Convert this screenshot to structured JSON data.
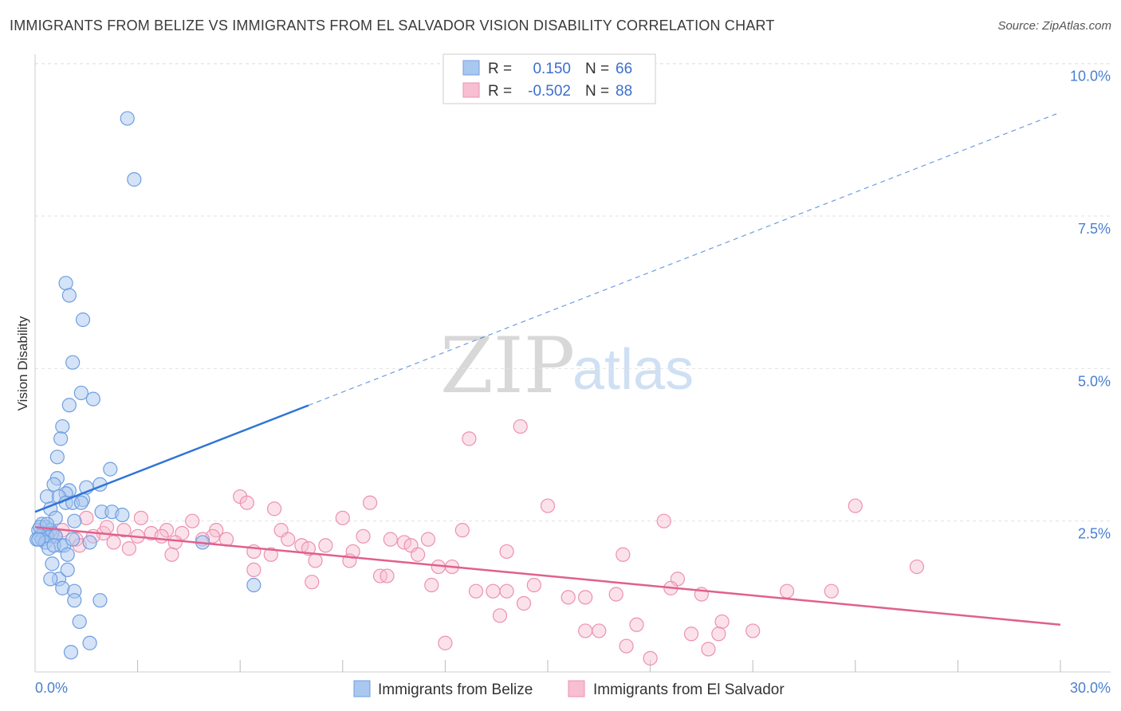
{
  "header": {
    "title": "IMMIGRANTS FROM BELIZE VS IMMIGRANTS FROM EL SALVADOR VISION DISABILITY CORRELATION CHART",
    "source": "Source: ZipAtlas.com"
  },
  "watermark": {
    "zip": "ZIP",
    "atlas": "atlas"
  },
  "legend": {
    "rows": [
      {
        "r_label": "R =",
        "r_value": "0.150",
        "n_label": "N =",
        "n_value": "66"
      },
      {
        "r_label": "R =",
        "r_value": "-0.502",
        "n_label": "N =",
        "n_value": "88"
      }
    ]
  },
  "chart_data": {
    "type": "scatter",
    "title": "IMMIGRANTS FROM BELIZE VS IMMIGRANTS FROM EL SALVADOR VISION DISABILITY CORRELATION CHART",
    "xlabel": "",
    "ylabel": "Vision Disability",
    "xlim": [
      0,
      30
    ],
    "ylim": [
      0,
      10.5
    ],
    "x_tick_labels": [
      "0.0%",
      "30.0%"
    ],
    "y_ticks": [
      2.5,
      5.0,
      7.5,
      10.0
    ],
    "y_tick_labels": [
      "2.5%",
      "5.0%",
      "7.5%",
      "10.0%"
    ],
    "grid": true,
    "colors": {
      "belize_fill": "#a9c8f0",
      "belize_stroke": "#6f9ee0",
      "belize_line": "#2f74d6",
      "salvador_fill": "#f7bfd1",
      "salvador_stroke": "#ee90b0",
      "salvador_line": "#e0608f"
    },
    "series": [
      {
        "name": "Immigrants from Belize",
        "r": 0.15,
        "n": 66,
        "trend": {
          "x0": 0.0,
          "y0": 2.65,
          "x_solid_end": 8.0,
          "x1": 30.0,
          "y1": 9.2
        },
        "points": [
          [
            2.7,
            9.1
          ],
          [
            2.9,
            8.1
          ],
          [
            0.9,
            6.4
          ],
          [
            1.0,
            6.2
          ],
          [
            1.4,
            5.8
          ],
          [
            1.1,
            5.1
          ],
          [
            1.35,
            4.6
          ],
          [
            1.0,
            4.4
          ],
          [
            1.7,
            4.5
          ],
          [
            0.8,
            4.05
          ],
          [
            0.75,
            3.85
          ],
          [
            0.65,
            3.55
          ],
          [
            2.2,
            3.35
          ],
          [
            0.65,
            3.2
          ],
          [
            0.55,
            3.1
          ],
          [
            1.5,
            3.05
          ],
          [
            1.9,
            3.1
          ],
          [
            1.0,
            3.0
          ],
          [
            0.9,
            2.95
          ],
          [
            0.35,
            2.9
          ],
          [
            0.7,
            2.9
          ],
          [
            1.4,
            2.85
          ],
          [
            0.9,
            2.8
          ],
          [
            1.1,
            2.8
          ],
          [
            1.35,
            2.8
          ],
          [
            0.45,
            2.7
          ],
          [
            1.95,
            2.65
          ],
          [
            2.25,
            2.65
          ],
          [
            2.55,
            2.6
          ],
          [
            0.6,
            2.55
          ],
          [
            1.15,
            2.5
          ],
          [
            0.2,
            2.45
          ],
          [
            0.3,
            2.4
          ],
          [
            0.1,
            2.35
          ],
          [
            0.45,
            2.35
          ],
          [
            0.25,
            2.3
          ],
          [
            0.5,
            2.3
          ],
          [
            0.15,
            2.25
          ],
          [
            0.35,
            2.25
          ],
          [
            0.6,
            2.25
          ],
          [
            0.05,
            2.2
          ],
          [
            0.2,
            2.2
          ],
          [
            0.3,
            2.15
          ],
          [
            0.75,
            2.1
          ],
          [
            0.4,
            2.05
          ],
          [
            1.6,
            2.15
          ],
          [
            0.55,
            2.1
          ],
          [
            0.85,
            2.1
          ],
          [
            0.95,
            1.95
          ],
          [
            0.5,
            1.8
          ],
          [
            0.7,
            1.55
          ],
          [
            0.95,
            1.7
          ],
          [
            0.45,
            1.55
          ],
          [
            0.8,
            1.4
          ],
          [
            1.15,
            1.35
          ],
          [
            1.15,
            1.2
          ],
          [
            1.9,
            1.2
          ],
          [
            1.3,
            0.85
          ],
          [
            1.6,
            0.5
          ],
          [
            1.05,
            0.35
          ],
          [
            4.9,
            2.15
          ],
          [
            6.4,
            1.45
          ],
          [
            0.15,
            2.4
          ],
          [
            0.1,
            2.2
          ],
          [
            0.35,
            2.45
          ],
          [
            1.1,
            2.2
          ]
        ]
      },
      {
        "name": "Immigrants from El Salvador",
        "r": -0.502,
        "n": 88,
        "trend": {
          "x0": 0.0,
          "y0": 2.4,
          "x1": 30.0,
          "y1": 0.8
        },
        "points": [
          [
            14.2,
            4.05
          ],
          [
            12.7,
            3.85
          ],
          [
            6.0,
            2.9
          ],
          [
            6.2,
            2.8
          ],
          [
            9.8,
            2.8
          ],
          [
            7.0,
            2.7
          ],
          [
            15.0,
            2.75
          ],
          [
            24.0,
            2.75
          ],
          [
            3.1,
            2.55
          ],
          [
            9.0,
            2.55
          ],
          [
            4.6,
            2.5
          ],
          [
            18.4,
            2.5
          ],
          [
            2.6,
            2.35
          ],
          [
            3.85,
            2.35
          ],
          [
            7.2,
            2.35
          ],
          [
            12.5,
            2.35
          ],
          [
            2.0,
            2.3
          ],
          [
            3.4,
            2.3
          ],
          [
            5.3,
            2.35
          ],
          [
            9.6,
            2.25
          ],
          [
            3.0,
            2.25
          ],
          [
            3.7,
            2.25
          ],
          [
            4.3,
            2.3
          ],
          [
            5.2,
            2.25
          ],
          [
            7.4,
            2.2
          ],
          [
            10.4,
            2.2
          ],
          [
            11.5,
            2.2
          ],
          [
            10.8,
            2.15
          ],
          [
            1.7,
            2.25
          ],
          [
            5.6,
            2.2
          ],
          [
            7.8,
            2.1
          ],
          [
            8.5,
            2.1
          ],
          [
            2.3,
            2.15
          ],
          [
            4.1,
            2.15
          ],
          [
            4.9,
            2.2
          ],
          [
            8.0,
            2.05
          ],
          [
            11.0,
            2.1
          ],
          [
            2.75,
            2.05
          ],
          [
            6.4,
            2.0
          ],
          [
            9.3,
            2.0
          ],
          [
            13.8,
            2.0
          ],
          [
            4.0,
            1.95
          ],
          [
            6.9,
            1.95
          ],
          [
            11.2,
            1.95
          ],
          [
            8.2,
            1.85
          ],
          [
            9.2,
            1.85
          ],
          [
            11.8,
            1.75
          ],
          [
            12.2,
            1.75
          ],
          [
            17.2,
            1.95
          ],
          [
            25.8,
            1.75
          ],
          [
            6.4,
            1.7
          ],
          [
            10.1,
            1.6
          ],
          [
            10.3,
            1.6
          ],
          [
            8.1,
            1.5
          ],
          [
            11.6,
            1.45
          ],
          [
            14.6,
            1.45
          ],
          [
            18.8,
            1.55
          ],
          [
            12.9,
            1.35
          ],
          [
            13.4,
            1.35
          ],
          [
            13.8,
            1.35
          ],
          [
            16.1,
            1.25
          ],
          [
            17.0,
            1.3
          ],
          [
            19.5,
            1.3
          ],
          [
            22.0,
            1.35
          ],
          [
            15.6,
            1.25
          ],
          [
            23.3,
            1.35
          ],
          [
            18.6,
            1.4
          ],
          [
            13.6,
            0.95
          ],
          [
            14.3,
            1.15
          ],
          [
            16.1,
            0.7
          ],
          [
            16.5,
            0.7
          ],
          [
            17.6,
            0.8
          ],
          [
            19.2,
            0.65
          ],
          [
            20.1,
            0.85
          ],
          [
            20.0,
            0.65
          ],
          [
            21.0,
            0.7
          ],
          [
            12.0,
            0.5
          ],
          [
            17.3,
            0.45
          ],
          [
            19.7,
            0.4
          ],
          [
            18.0,
            0.25
          ],
          [
            0.5,
            2.3
          ],
          [
            0.8,
            2.35
          ],
          [
            1.2,
            2.2
          ],
          [
            1.5,
            2.55
          ],
          [
            0.3,
            2.4
          ],
          [
            2.1,
            2.4
          ],
          [
            0.6,
            2.25
          ],
          [
            1.3,
            2.1
          ]
        ]
      }
    ]
  },
  "bottom_legend": {
    "items": [
      {
        "label": "Immigrants from Belize"
      },
      {
        "label": "Immigrants from El Salvador"
      }
    ]
  }
}
